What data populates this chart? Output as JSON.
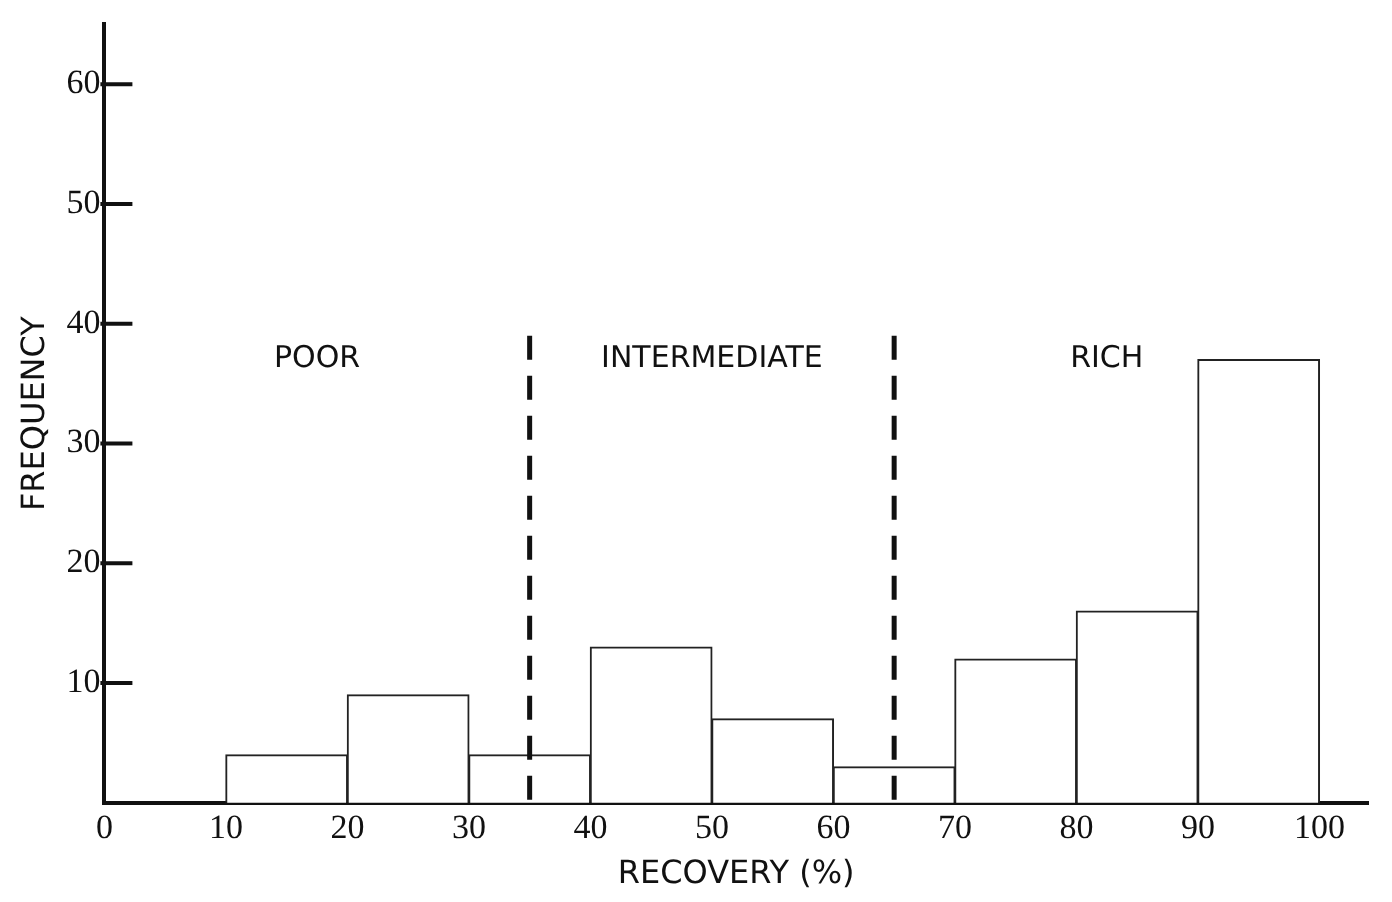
{
  "chart_data": {
    "type": "histogram",
    "xlabel": "RECOVERY (%)",
    "ylabel": "FREQUENCY",
    "bins": [
      0,
      10,
      20,
      30,
      40,
      50,
      60,
      70,
      80,
      90,
      100
    ],
    "values": [
      0,
      4,
      9,
      4,
      13,
      7,
      3,
      12,
      16,
      37
    ],
    "color": "#ffffff",
    "xlim": [
      0,
      104
    ],
    "xticks": [
      0,
      10,
      20,
      30,
      40,
      50,
      60,
      70,
      80,
      90,
      100
    ],
    "ylim": [
      0,
      65
    ],
    "yticks": [
      10,
      20,
      30,
      40,
      50,
      60
    ],
    "grid": false,
    "legend": false,
    "ref_lines": [
      {
        "axis": "x",
        "value": 35,
        "line_style": "dashed"
      },
      {
        "axis": "x",
        "value": 65,
        "line_style": "dashed"
      }
    ],
    "annotations": [
      "POOR",
      "INTERMEDIATE",
      "RICH"
    ]
  }
}
